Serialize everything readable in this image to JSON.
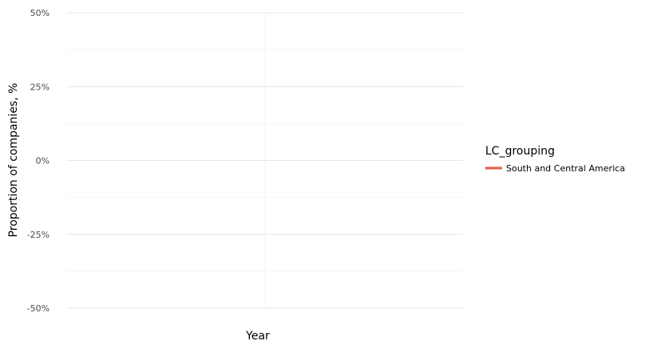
{
  "chart_data": {
    "type": "line",
    "xlabel": "Year",
    "ylabel": "Proportion of companies, %",
    "ylim": [
      -50,
      50
    ],
    "yticks": [
      -50,
      -25,
      0,
      25,
      50
    ],
    "ytick_labels": [
      "-50%",
      "-25%",
      "0%",
      "25%",
      "50%"
    ],
    "grid": true,
    "legend_position": "right",
    "legend_title": "LC_grouping",
    "series": [
      {
        "name": "South and Central America",
        "color": "#e05a4a",
        "x": [],
        "values": []
      }
    ]
  }
}
